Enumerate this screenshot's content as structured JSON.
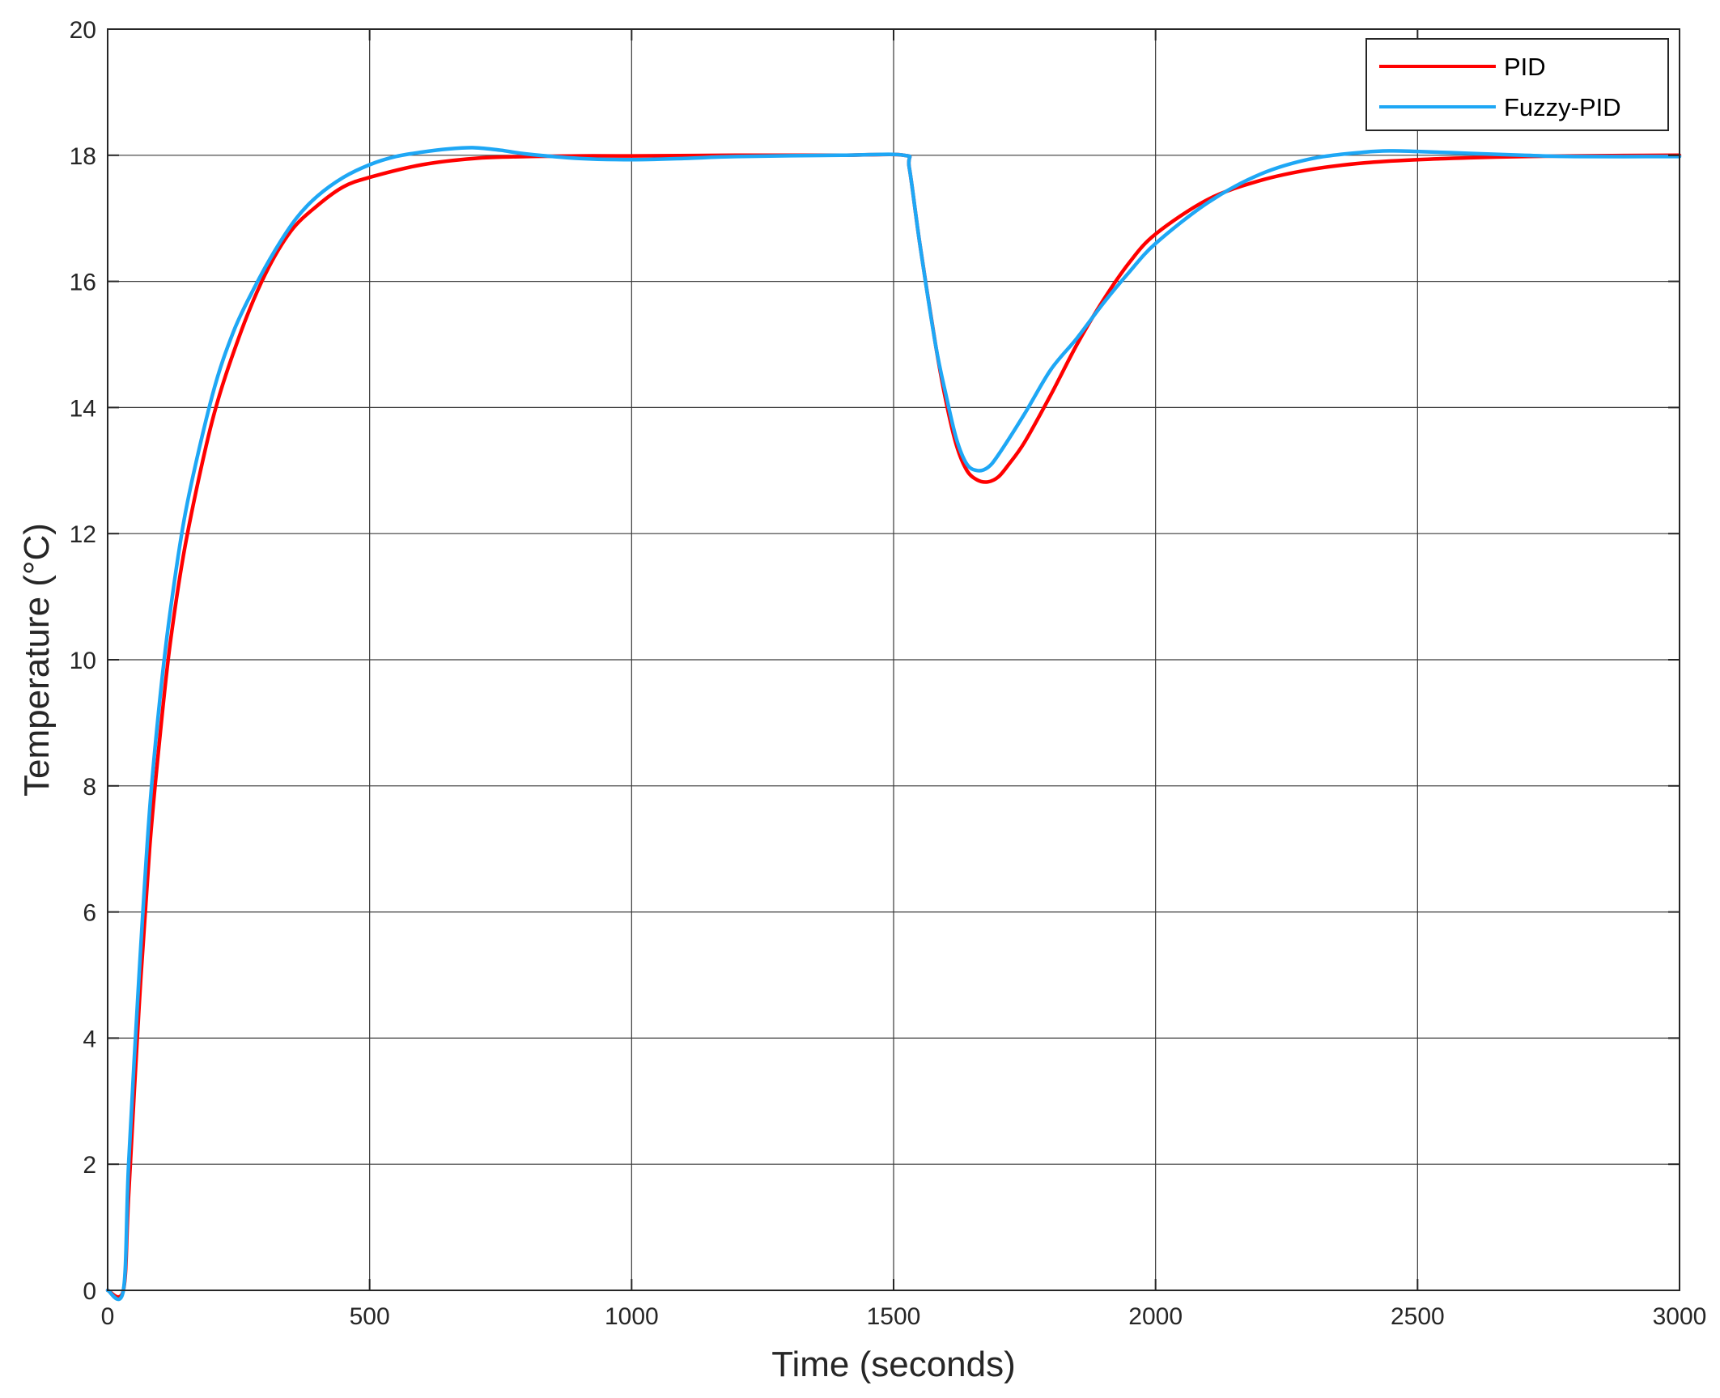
{
  "chart_data": {
    "type": "line",
    "title": "",
    "xlabel": "Time (seconds)",
    "ylabel": "Temperature (°C)",
    "xlim": [
      0,
      3000
    ],
    "ylim": [
      0,
      20
    ],
    "xticks": [
      0,
      500,
      1000,
      1500,
      2000,
      2500,
      3000
    ],
    "yticks": [
      0,
      2,
      4,
      6,
      8,
      10,
      12,
      14,
      16,
      18,
      20
    ],
    "xtick_labels": [
      "0",
      "500",
      "1000",
      "1500",
      "2000",
      "2500",
      "3000"
    ],
    "ytick_labels": [
      "0",
      "2",
      "4",
      "6",
      "8",
      "10",
      "12",
      "14",
      "16",
      "18",
      "20"
    ],
    "grid": true,
    "legend_position": "top-right",
    "series": [
      {
        "name": "PID",
        "color": "#ff0000",
        "x": [
          0,
          30,
          40,
          60,
          80,
          100,
          120,
          150,
          200,
          250,
          300,
          350,
          400,
          450,
          500,
          600,
          700,
          800,
          900,
          1000,
          1200,
          1400,
          1520,
          1530,
          1550,
          1580,
          1600,
          1620,
          1640,
          1660,
          1680,
          1700,
          1720,
          1750,
          1800,
          1850,
          1900,
          1950,
          2000,
          2100,
          2200,
          2300,
          2400,
          2500,
          2600,
          2700,
          2800,
          3000
        ],
        "y": [
          0,
          0,
          1.5,
          4.5,
          7.0,
          8.8,
          10.3,
          11.9,
          13.8,
          15.1,
          16.1,
          16.8,
          17.2,
          17.5,
          17.65,
          17.85,
          17.95,
          17.98,
          17.99,
          17.99,
          18.0,
          18.0,
          18.0,
          17.8,
          16.6,
          15.0,
          14.1,
          13.4,
          13.0,
          12.85,
          12.82,
          12.9,
          13.1,
          13.45,
          14.2,
          15.0,
          15.7,
          16.3,
          16.75,
          17.3,
          17.6,
          17.78,
          17.88,
          17.93,
          17.96,
          17.98,
          17.99,
          18.0
        ]
      },
      {
        "name": "Fuzzy-PID",
        "color": "#1ea7f5",
        "x": [
          0,
          30,
          40,
          60,
          80,
          100,
          120,
          150,
          200,
          240,
          280,
          320,
          360,
          400,
          450,
          500,
          550,
          600,
          650,
          700,
          750,
          800,
          900,
          1000,
          1100,
          1200,
          1400,
          1520,
          1530,
          1550,
          1580,
          1600,
          1620,
          1640,
          1660,
          1680,
          1700,
          1750,
          1800,
          1850,
          1900,
          1950,
          2000,
          2100,
          2200,
          2300,
          2400,
          2450,
          2500,
          2600,
          2700,
          2800,
          3000
        ],
        "y": [
          0,
          0,
          2.0,
          5.0,
          7.6,
          9.4,
          10.8,
          12.4,
          14.2,
          15.2,
          15.9,
          16.5,
          17.0,
          17.35,
          17.65,
          17.85,
          17.98,
          18.05,
          18.1,
          18.12,
          18.08,
          18.02,
          17.95,
          17.93,
          17.95,
          17.98,
          18.0,
          18.0,
          17.8,
          16.6,
          15.0,
          14.2,
          13.5,
          13.1,
          13.0,
          13.05,
          13.25,
          13.9,
          14.6,
          15.1,
          15.65,
          16.15,
          16.6,
          17.25,
          17.7,
          17.95,
          18.05,
          18.07,
          18.06,
          18.03,
          18.0,
          17.98,
          17.98
        ]
      }
    ]
  }
}
